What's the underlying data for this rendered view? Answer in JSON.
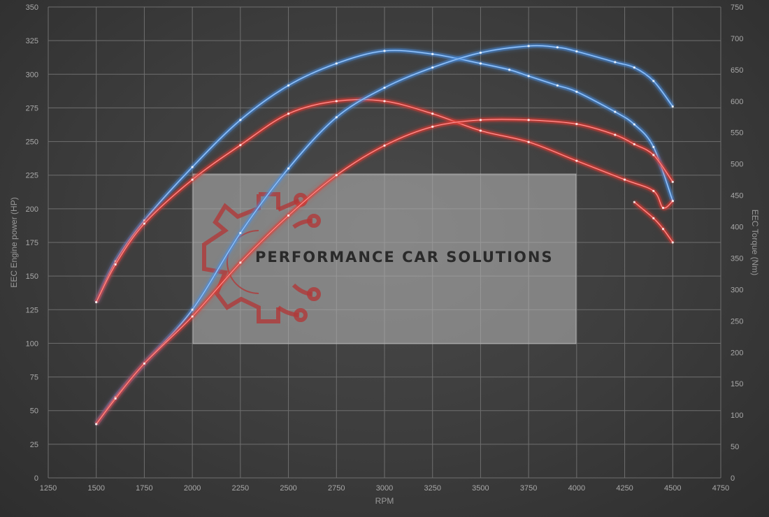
{
  "chart_data": {
    "type": "line",
    "xlabel": "RPM",
    "ylabel_left": "EEC Engine power (HP)",
    "ylabel_right": "EEC Torque (Nm)",
    "xlim": [
      1250,
      4750
    ],
    "x_ticks": [
      1250,
      1500,
      1750,
      2000,
      2250,
      2500,
      2750,
      3000,
      3250,
      3500,
      3750,
      4000,
      4250,
      4500,
      4750
    ],
    "ylim_left": [
      0,
      350
    ],
    "y_ticks_left": [
      0,
      25,
      50,
      75,
      100,
      125,
      150,
      175,
      200,
      225,
      250,
      275,
      300,
      325,
      350
    ],
    "ylim_right": [
      0,
      750
    ],
    "y_ticks_right": [
      0,
      50,
      100,
      150,
      200,
      250,
      300,
      350,
      400,
      450,
      500,
      550,
      600,
      650,
      700,
      750
    ],
    "grid": true,
    "series": [
      {
        "axis": "right",
        "color": "#4a90e2",
        "x": [
          1500,
          1600,
          1750,
          2000,
          2250,
          2500,
          2750,
          3000,
          3250,
          3500,
          3650,
          3750,
          3900,
          4000,
          4200,
          4300,
          4400,
          4500
        ],
        "y": [
          280,
          345,
          410,
          495,
          570,
          625,
          660,
          680,
          675,
          660,
          650,
          640,
          625,
          615,
          583,
          563,
          527,
          441
        ]
      },
      {
        "axis": "right",
        "color": "#e53935",
        "x": [
          1500,
          1600,
          1750,
          2000,
          2250,
          2500,
          2750,
          3000,
          3250,
          3500,
          3750,
          4000,
          4250,
          4400,
          4450,
          4500
        ],
        "y": [
          280,
          340,
          405,
          475,
          530,
          580,
          600,
          600,
          580,
          553,
          535,
          505,
          475,
          457,
          430,
          441
        ]
      },
      {
        "axis": "left",
        "color": "#4a90e2",
        "x": [
          1500,
          1600,
          1750,
          2000,
          2250,
          2500,
          2750,
          3000,
          3250,
          3500,
          3750,
          3900,
          4000,
          4200,
          4300,
          4400,
          4500
        ],
        "y": [
          40,
          60,
          85,
          125,
          182,
          230,
          268,
          290,
          305,
          316,
          321,
          320,
          317,
          309,
          305,
          295,
          276
        ]
      },
      {
        "axis": "left",
        "color": "#e53935",
        "x": [
          1500,
          1600,
          1750,
          2000,
          2250,
          2500,
          2750,
          3000,
          3250,
          3500,
          3750,
          4000,
          4200,
          4300,
          4400,
          4500
        ],
        "y": [
          40,
          59,
          85,
          120,
          160,
          195,
          225,
          247,
          261,
          266,
          266,
          263,
          255,
          248,
          240,
          220
        ]
      },
      {
        "axis": "left",
        "color": "#e53935",
        "x": [
          4300,
          4400,
          4450,
          4500
        ],
        "y": [
          205,
          193,
          185,
          175
        ]
      }
    ]
  },
  "watermark": {
    "text": "PERFORMANCE CAR SOLUTIONS",
    "logo": "gear-circuit-logo",
    "logo_color": "#b03a3a"
  }
}
